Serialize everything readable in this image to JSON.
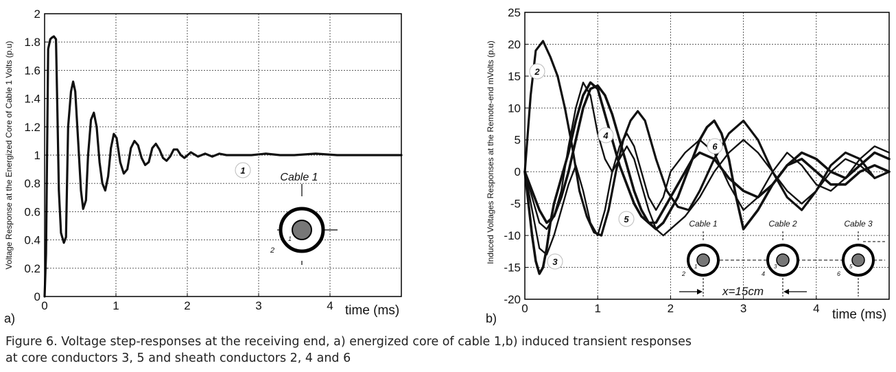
{
  "caption": {
    "line1": "Figure 6.  Voltage step-responses at the receiving end, a) energized core of cable 1,b) induced transient responses",
    "line2": "at core conductors 3, 5 and sheath conductors 2, 4 and 6"
  },
  "chart_data": [
    {
      "type": "line",
      "panel_label": "a)",
      "xlabel": "time (ms)",
      "ylabel": "Voltage Response at the Energized Core of Cable 1 Volts (p.u)",
      "xlim": [
        0,
        5
      ],
      "ylim": [
        0,
        2
      ],
      "xticks": [
        0,
        1,
        2,
        3,
        4
      ],
      "yticks": [
        0,
        0.2,
        0.4,
        0.6,
        0.8,
        1,
        1.2,
        1.4,
        1.6,
        1.8,
        2
      ],
      "ytick_labels": [
        "0",
        "0.2",
        "0.4",
        "0.6",
        "0.8",
        "1",
        "1.2",
        "1.4",
        "1.6",
        "1.8",
        "2"
      ],
      "grid": true,
      "series": [
        {
          "name": "1",
          "x": [
            0,
            0.02,
            0.05,
            0.08,
            0.1,
            0.13,
            0.16,
            0.18,
            0.2,
            0.23,
            0.27,
            0.3,
            0.33,
            0.37,
            0.4,
            0.43,
            0.47,
            0.51,
            0.54,
            0.58,
            0.61,
            0.65,
            0.69,
            0.73,
            0.77,
            0.81,
            0.85,
            0.89,
            0.93,
            0.97,
            1.01,
            1.06,
            1.11,
            1.16,
            1.21,
            1.26,
            1.31,
            1.36,
            1.41,
            1.46,
            1.51,
            1.56,
            1.61,
            1.66,
            1.71,
            1.76,
            1.81,
            1.86,
            1.91,
            1.96,
            2.05,
            2.15,
            2.25,
            2.35,
            2.45,
            2.55,
            2.7,
            2.9,
            3.1,
            3.3,
            3.5,
            3.8,
            4.1,
            4.4,
            4.7,
            5.0
          ],
          "y": [
            0,
            0.3,
            1.75,
            1.82,
            1.83,
            1.84,
            1.82,
            1.3,
            0.75,
            0.45,
            0.38,
            0.42,
            1.2,
            1.45,
            1.52,
            1.45,
            1.1,
            0.75,
            0.62,
            0.68,
            1.0,
            1.25,
            1.3,
            1.2,
            0.95,
            0.8,
            0.75,
            0.85,
            1.05,
            1.15,
            1.12,
            0.95,
            0.87,
            0.9,
            1.05,
            1.1,
            1.07,
            0.98,
            0.93,
            0.95,
            1.05,
            1.08,
            1.04,
            0.98,
            0.96,
            0.99,
            1.04,
            1.04,
            1.0,
            0.98,
            1.02,
            0.99,
            1.01,
            0.99,
            1.01,
            1.0,
            1.0,
            1.0,
            1.01,
            1.0,
            1.0,
            1.01,
            1.0,
            1.0,
            1.0,
            1.0
          ]
        }
      ],
      "annotations": {
        "curve_label": "1",
        "cable_title": "Cable 1",
        "core_label": "1",
        "sheath_label": "2"
      }
    },
    {
      "type": "line",
      "panel_label": "b)",
      "xlabel": "time (ms)",
      "ylabel": "Induced Voltages Responses at the Remote-end mVolts (p.u)",
      "xlim": [
        0,
        5
      ],
      "ylim": [
        -20,
        25
      ],
      "xticks": [
        0,
        1,
        2,
        3,
        4
      ],
      "yticks": [
        -20,
        -15,
        -10,
        -5,
        0,
        5,
        10,
        15,
        20,
        25
      ],
      "ytick_labels": [
        "-20",
        "-15",
        "-10",
        "-5",
        "0",
        "5",
        "10",
        "15",
        "20",
        "25"
      ],
      "grid": true,
      "series": [
        {
          "name": "2",
          "x": [
            0,
            0.08,
            0.15,
            0.25,
            0.35,
            0.45,
            0.55,
            0.65,
            0.75,
            0.85,
            0.95,
            1.05,
            1.15,
            1.25,
            1.35,
            1.45,
            1.55,
            1.65,
            1.8,
            1.95,
            2.1,
            2.25,
            2.4,
            2.6,
            2.8,
            3.0,
            3.2,
            3.4,
            3.6,
            3.8,
            4.0,
            4.2,
            4.4,
            4.6,
            4.8,
            5.0
          ],
          "y": [
            0,
            12,
            19,
            20.5,
            18,
            15,
            10,
            4,
            -3,
            -7,
            -9.5,
            -10,
            -6,
            0,
            5,
            8,
            9.5,
            8,
            2,
            -3,
            -5.5,
            -6,
            -3,
            2,
            6,
            8,
            5,
            0,
            -4,
            -6,
            -3,
            1,
            3,
            2,
            -1,
            0
          ]
        },
        {
          "name": "3",
          "x": [
            0,
            0.05,
            0.1,
            0.15,
            0.2,
            0.25,
            0.3,
            0.35,
            0.4,
            0.5,
            0.6,
            0.7,
            0.8,
            0.9,
            1.0,
            1.1,
            1.2,
            1.3,
            1.4,
            1.5,
            1.6,
            1.7,
            1.8,
            1.9,
            2.0,
            2.1,
            2.2,
            2.3,
            2.4,
            2.6,
            2.8,
            3.0,
            3.2,
            3.4,
            3.6,
            3.8,
            4.0,
            4.2,
            4.4,
            4.6,
            4.8,
            5.0
          ],
          "y": [
            0,
            -5,
            -10,
            -14,
            -16,
            -15,
            -12,
            -8,
            -5,
            -1,
            3,
            8,
            12,
            14,
            13,
            9,
            5,
            1,
            -2,
            -5,
            -7,
            -8,
            -8,
            -6,
            -4,
            -2,
            0,
            2,
            3,
            2,
            -1,
            -3,
            -4,
            -2,
            1,
            3,
            2,
            0,
            -1,
            1,
            3,
            2
          ]
        },
        {
          "name": "4",
          "x": [
            0,
            0.1,
            0.2,
            0.3,
            0.4,
            0.5,
            0.6,
            0.7,
            0.8,
            0.9,
            1.0,
            1.1,
            1.2,
            1.3,
            1.4,
            1.5,
            1.6,
            1.7,
            1.8,
            1.9,
            2.0,
            2.2,
            2.4,
            2.6,
            2.8,
            3.0,
            3.2,
            3.4,
            3.6,
            3.8,
            4.0,
            4.2,
            4.4,
            4.6,
            4.8,
            5.0
          ],
          "y": [
            0,
            -4,
            -8,
            -9,
            -7,
            -3,
            4,
            10,
            14,
            12,
            6,
            2,
            0,
            2,
            4,
            2,
            -2,
            -6,
            -9,
            -10,
            -9,
            -7,
            -4,
            0,
            3,
            5,
            3,
            0,
            -3,
            -5,
            -3,
            0,
            2,
            1,
            -1,
            0
          ]
        },
        {
          "name": "5",
          "x": [
            0,
            0.1,
            0.2,
            0.3,
            0.4,
            0.5,
            0.6,
            0.7,
            0.8,
            0.9,
            1.0,
            1.1,
            1.2,
            1.3,
            1.4,
            1.5,
            1.6,
            1.7,
            1.8,
            1.9,
            2.0,
            2.2,
            2.4,
            2.6,
            2.8,
            3.0,
            3.2,
            3.4,
            3.6,
            3.8,
            4.0,
            4.2,
            4.4,
            4.6,
            4.8,
            5.0
          ],
          "y": [
            0,
            -6,
            -12,
            -13,
            -10,
            -6,
            -2,
            1,
            -3,
            -8,
            -10,
            -6,
            0,
            4,
            6,
            4,
            0,
            -4,
            -6,
            -4,
            0,
            3,
            5,
            3,
            -2,
            -6,
            -4,
            0,
            3,
            1,
            -2,
            -3,
            -1,
            2,
            4,
            3
          ]
        },
        {
          "name": "6",
          "x": [
            0,
            0.1,
            0.2,
            0.3,
            0.4,
            0.5,
            0.6,
            0.7,
            0.8,
            0.9,
            1.0,
            1.1,
            1.2,
            1.3,
            1.4,
            1.5,
            1.6,
            1.7,
            1.8,
            1.9,
            2.0,
            2.1,
            2.2,
            2.3,
            2.4,
            2.5,
            2.6,
            2.7,
            2.8,
            2.9,
            3.0,
            3.2,
            3.4,
            3.6,
            3.8,
            4.0,
            4.2,
            4.4,
            4.6,
            4.8,
            5.0
          ],
          "y": [
            0,
            -3,
            -6,
            -8,
            -7,
            -4,
            0,
            5,
            10,
            13,
            13.5,
            12,
            9,
            5,
            1,
            -3,
            -6,
            -8,
            -9,
            -8,
            -6,
            -4,
            -1,
            2,
            5,
            7,
            8,
            6,
            2,
            -4,
            -9,
            -6,
            -2,
            1,
            2,
            0,
            -2,
            -2,
            0,
            1,
            0
          ]
        }
      ],
      "annotations": {
        "curve_labels": [
          "2",
          "3",
          "4",
          "5",
          "6"
        ],
        "cable_titles": [
          "Cable 1",
          "Cable 2",
          "Cable 3"
        ],
        "core_labels": [
          "1",
          "3",
          "5"
        ],
        "sheath_labels": [
          "2",
          "4",
          "6"
        ],
        "spacing_label": "x=15cm"
      }
    }
  ]
}
